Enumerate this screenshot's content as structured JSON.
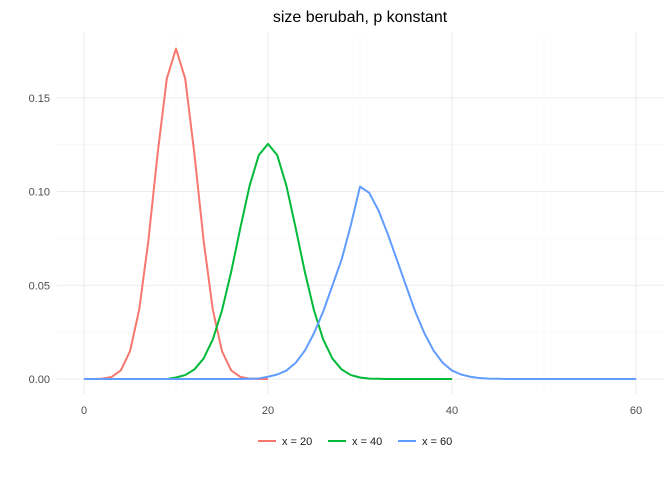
{
  "chart_data": {
    "type": "line",
    "title": "size berubah, p konstant",
    "xlabel": "",
    "ylabel": "",
    "xlim": [
      0,
      60
    ],
    "ylim": [
      0,
      0.176
    ],
    "x_ticks": [
      0,
      20,
      40,
      60
    ],
    "y_ticks": [
      0.0,
      0.05,
      0.1,
      0.15
    ],
    "x_tick_labels": [
      "0",
      "20",
      "40",
      "60"
    ],
    "y_tick_labels": [
      "0.00",
      "0.05",
      "0.10",
      "0.15"
    ],
    "grid": true,
    "legend_position": "bottom",
    "series": [
      {
        "name": "x = 20",
        "color": "#F8766D",
        "x": [
          0,
          1,
          2,
          3,
          4,
          5,
          6,
          7,
          8,
          9,
          10,
          11,
          12,
          13,
          14,
          15,
          16,
          17,
          18,
          19,
          20
        ],
        "y": [
          0.0,
          0.0,
          0.0002,
          0.0011,
          0.0046,
          0.0148,
          0.037,
          0.0739,
          0.1201,
          0.1602,
          0.1762,
          0.1602,
          0.1201,
          0.0739,
          0.037,
          0.0148,
          0.0046,
          0.0011,
          0.0002,
          0.0,
          0.0
        ]
      },
      {
        "name": "x = 40",
        "color": "#00BA38",
        "x": [
          0,
          1,
          2,
          3,
          4,
          5,
          6,
          7,
          8,
          9,
          10,
          11,
          12,
          13,
          14,
          15,
          16,
          17,
          18,
          19,
          20,
          21,
          22,
          23,
          24,
          25,
          26,
          27,
          28,
          29,
          30,
          31,
          32,
          33,
          34,
          35,
          36,
          37,
          38,
          39,
          40
        ],
        "y": [
          0.0,
          0.0,
          0.0,
          0.0,
          0.0,
          0.0,
          0.0,
          0.0,
          0.0,
          0.0,
          0.0008,
          0.0021,
          0.0051,
          0.0109,
          0.0211,
          0.0366,
          0.0572,
          0.0807,
          0.1031,
          0.1194,
          0.1254,
          0.1194,
          0.1031,
          0.0807,
          0.0572,
          0.0366,
          0.0211,
          0.0109,
          0.0051,
          0.0021,
          0.0008,
          0.0002,
          0.0001,
          0.0,
          0.0,
          0.0,
          0.0,
          0.0,
          0.0,
          0.0,
          0.0
        ]
      },
      {
        "name": "x = 60",
        "color": "#619CFF",
        "x": [
          0,
          1,
          2,
          3,
          4,
          5,
          6,
          7,
          8,
          9,
          10,
          11,
          12,
          13,
          14,
          15,
          16,
          17,
          18,
          19,
          20,
          21,
          22,
          23,
          24,
          25,
          26,
          27,
          28,
          29,
          30,
          31,
          32,
          33,
          34,
          35,
          36,
          37,
          38,
          39,
          40,
          41,
          42,
          43,
          44,
          45,
          46,
          47,
          48,
          49,
          50,
          51,
          52,
          53,
          54,
          55,
          56,
          57,
          58,
          59,
          60
        ],
        "y": [
          0.0,
          0.0,
          0.0,
          0.0,
          0.0,
          0.0,
          0.0,
          0.0,
          0.0,
          0.0,
          0.0,
          0.0,
          0.0,
          0.0,
          0.0,
          0.0,
          0.0,
          0.0,
          0.0001,
          0.0003,
          0.0012,
          0.0024,
          0.0045,
          0.0086,
          0.0151,
          0.0244,
          0.036,
          0.0498,
          0.0637,
          0.082,
          0.1026,
          0.0993,
          0.09,
          0.0776,
          0.0637,
          0.0498,
          0.036,
          0.0244,
          0.0151,
          0.0086,
          0.0045,
          0.0024,
          0.0012,
          0.0005,
          0.0002,
          0.0001,
          0.0,
          0.0,
          0.0,
          0.0,
          0.0,
          0.0,
          0.0,
          0.0,
          0.0,
          0.0,
          0.0,
          0.0,
          0.0,
          0.0,
          0.0
        ]
      }
    ]
  }
}
